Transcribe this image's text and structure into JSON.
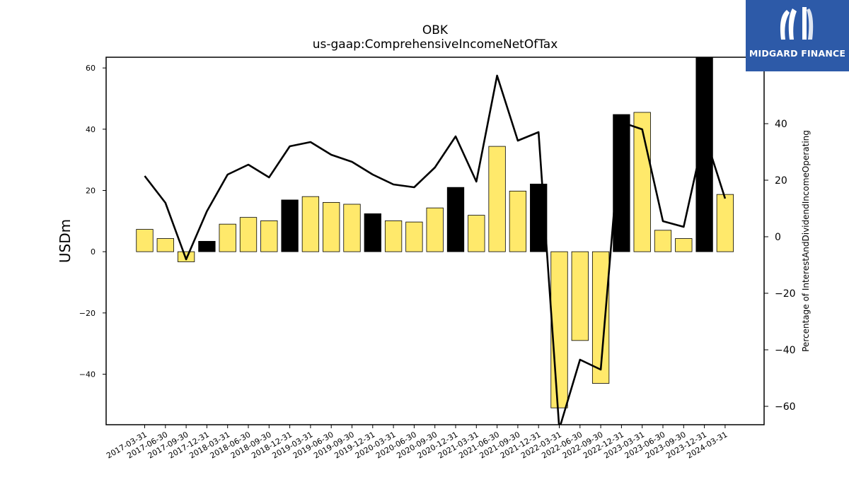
{
  "brand": {
    "name": "MIDGARD FINANCE",
    "color": "#2d5aa8"
  },
  "chart_data": {
    "type": "bar",
    "title": "OBK",
    "subtitle": "us-gaap:ComprehensiveIncomeNetOfTax",
    "ylabel": "USDm",
    "y2label": "Percentage of InterestAndDividendIncomeOperating",
    "ylim": [
      -56.5,
      63.5
    ],
    "y2lim": [
      -66.5,
      63.5
    ],
    "yticks": [
      -40,
      -20,
      0,
      20,
      40,
      60
    ],
    "y2ticks": [
      -60,
      -40,
      -20,
      0,
      20,
      40
    ],
    "grid": false,
    "bar_colors": {
      "highlight": "#000000",
      "normal": "#ffe96b",
      "edge": "#000000"
    },
    "line_color": "#000000",
    "categories": [
      "2017-03-31",
      "2017-06-30",
      "2017-09-30",
      "2017-12-31",
      "2018-03-31",
      "2018-06-30",
      "2018-09-30",
      "2018-12-31",
      "2019-03-31",
      "2019-06-30",
      "2019-09-30",
      "2019-12-31",
      "2020-03-31",
      "2020-06-30",
      "2020-09-30",
      "2020-12-31",
      "2021-03-31",
      "2021-06-30",
      "2021-09-30",
      "2021-12-31",
      "2022-03-31",
      "2022-06-30",
      "2022-09-30",
      "2022-12-31",
      "2023-03-31",
      "2023-06-30",
      "2023-09-30",
      "2023-12-31",
      "2024-03-31"
    ],
    "series": [
      {
        "kind": "bar",
        "axis": "left",
        "values": [
          7.3,
          4.3,
          -3.3,
          3.4,
          9.0,
          11.2,
          10.1,
          16.9,
          18.0,
          16.1,
          15.5,
          12.4,
          10.1,
          9.7,
          14.3,
          21.0,
          11.9,
          34.4,
          19.8,
          22.1,
          -51.0,
          -29.0,
          -43.0,
          44.8,
          45.5,
          7.0,
          4.3,
          63.5,
          18.7
        ],
        "highlight": [
          false,
          false,
          false,
          true,
          false,
          false,
          false,
          true,
          false,
          false,
          false,
          true,
          false,
          false,
          false,
          true,
          false,
          false,
          false,
          true,
          false,
          false,
          false,
          true,
          false,
          false,
          false,
          true,
          false
        ]
      },
      {
        "kind": "line",
        "axis": "right",
        "values": [
          21.5,
          12.0,
          -8.0,
          9.0,
          22.0,
          25.5,
          21.0,
          32.0,
          33.5,
          29.0,
          26.5,
          22.0,
          18.5,
          17.5,
          24.5,
          35.5,
          19.5,
          57.0,
          34.0,
          37.0,
          -68.0,
          -43.5,
          -47.0,
          40.5,
          38.0,
          5.5,
          3.5,
          36.5,
          13.5
        ]
      }
    ]
  }
}
